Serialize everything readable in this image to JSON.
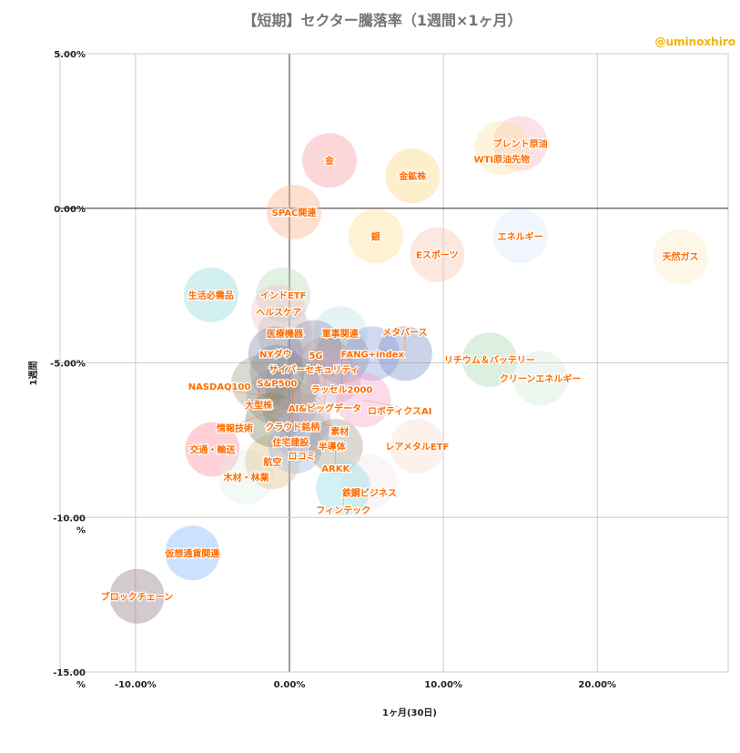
{
  "chart_data": {
    "type": "scatter",
    "title": "【短期】セクター騰落率（1週間×1ヶ月）",
    "watermark": "@uminoxhiro",
    "xlabel": "1ヶ月(30日)",
    "ylabel": "1週間",
    "xlim": [
      -14.9,
      28.5
    ],
    "ylim": [
      -15,
      5
    ],
    "x_ticks": [
      "-10.00%",
      "0.00%",
      "10.00%",
      "20.00%"
    ],
    "x_tick_values": [
      -10,
      0,
      10,
      20
    ],
    "y_ticks": [
      "5.00%",
      "0.00%",
      "-5.00%",
      "-10.00\n%",
      "-15.00\n%"
    ],
    "y_tick_values": [
      5,
      0,
      -5,
      -10,
      -15
    ],
    "grid": true,
    "label_color": "#ff6d00",
    "points": [
      {
        "label": "ブロックチェーン",
        "x": -9.9,
        "y": -12.55,
        "color": "#8e7b88"
      },
      {
        "label": "仮想通貨関連",
        "x": -6.3,
        "y": -11.15,
        "color": "#7fb1ff"
      },
      {
        "label": "交通・輸送",
        "x": -5.0,
        "y": -7.8,
        "color": "#ff8a9a"
      },
      {
        "label": "生活必需品",
        "x": -5.1,
        "y": -2.8,
        "color": "#8fd6dc"
      },
      {
        "label": "木材・林業",
        "x": -2.8,
        "y": -8.7,
        "color": "#e2efe4"
      },
      {
        "label": "航空",
        "x": -1.1,
        "y": -8.2,
        "color": "#e0c08c"
      },
      {
        "label": "ブレント原油",
        "x": 15.0,
        "y": 2.1,
        "color": "#f7b6bf"
      },
      {
        "label": "WTI原油先物",
        "x": 13.8,
        "y": 1.95,
        "color": "#fde3a5"
      },
      {
        "label": "金",
        "x": 2.6,
        "y": 1.55,
        "color": "#f59aa0"
      },
      {
        "label": "金鉱株",
        "x": 8.0,
        "y": 1.05,
        "color": "#fbd77a"
      },
      {
        "label": "SPAC関連",
        "x": 0.3,
        "y": -0.12,
        "color": "#f9b18a"
      },
      {
        "label": "銀",
        "x": 5.6,
        "y": -0.9,
        "color": "#fcde8f"
      },
      {
        "label": "エネルギー",
        "x": 15.0,
        "y": -0.9,
        "color": "#dbe6fb"
      },
      {
        "label": "Eスポーツ",
        "x": 9.6,
        "y": -1.5,
        "color": "#fbc6b0"
      },
      {
        "label": "天然ガス",
        "x": 25.4,
        "y": -1.56,
        "color": "#fde9c4"
      },
      {
        "label": "インドETF",
        "x": -0.4,
        "y": -2.8,
        "color": "#b9dcb7"
      },
      {
        "label": "ヘルスケア",
        "x": -0.7,
        "y": -3.35,
        "color": "#f5c0c9"
      },
      {
        "label": "医療機器",
        "x": -0.3,
        "y": -4.05,
        "color": "#c9c9c9"
      },
      {
        "label": "軍事関連",
        "x": 3.3,
        "y": -4.05,
        "color": "#bfe0e6"
      },
      {
        "label": "NYダウ",
        "x": -0.9,
        "y": -4.7,
        "color": "#8a8fa6"
      },
      {
        "label": "サイバーセキュリティ",
        "x": 1.6,
        "y": -4.5,
        "color": "#9b8cae"
      },
      {
        "label": "ラッセル2000",
        "x": 3.4,
        "y": -4.8,
        "color": "#a09090"
      },
      {
        "label": "FANG+index",
        "x": 5.4,
        "y": -4.7,
        "color": "#8f9fe0"
      },
      {
        "label": "メタバース",
        "x": 7.5,
        "y": -4.7,
        "color": "#7e90c6"
      },
      {
        "label": "リチウム＆バッテリー",
        "x": 13.0,
        "y": -4.9,
        "color": "#a9d6b0"
      },
      {
        "label": "クリーンエネルギー",
        "x": 16.3,
        "y": -5.5,
        "color": "#d3ecd8"
      },
      {
        "label": "AI&ビッグデータ",
        "x": 2.3,
        "y": -5.05,
        "color": "#b0a3a0"
      },
      {
        "label": "S&P500",
        "x": -0.8,
        "y": -5.3,
        "color": "#7d8aa0"
      },
      {
        "label": "5G",
        "x": 2.9,
        "y": -5.45,
        "color": "#c3a8c9"
      },
      {
        "label": "大型株",
        "x": -2.0,
        "y": -5.65,
        "color": "#a7a38a"
      },
      {
        "label": "クラウド銘柄",
        "x": 0.2,
        "y": -5.65,
        "color": "#9e9590"
      },
      {
        "label": "NASDAQ100",
        "x": -1.0,
        "y": -6.1,
        "color": "#9a9aa6"
      },
      {
        "label": "ロボティクスAI",
        "x": 4.8,
        "y": -6.2,
        "color": "#f0a6c8"
      },
      {
        "label": "情報技術",
        "x": 0.0,
        "y": -6.4,
        "color": "#9c8f7a"
      },
      {
        "label": "住宅建設",
        "x": -1.1,
        "y": -6.85,
        "color": "#7f8a6a"
      },
      {
        "label": "素材",
        "x": 0.9,
        "y": -6.85,
        "color": "#b8a3b8"
      },
      {
        "label": "ロコミ",
        "x": 0.8,
        "y": -7.3,
        "color": "#b7b3c7"
      },
      {
        "label": "半導体",
        "x": 0.4,
        "y": -7.7,
        "color": "#a2b7d6"
      },
      {
        "label": "ARKK",
        "x": 3.0,
        "y": -7.7,
        "color": "#a89a8d"
      },
      {
        "label": "レアメタルETF",
        "x": 8.3,
        "y": -7.7,
        "color": "#fbdccc"
      },
      {
        "label": "鉄鋼ビジネス",
        "x": 5.2,
        "y": -8.85,
        "color": "#f3e6e8"
      },
      {
        "label": "フィンテック",
        "x": 3.5,
        "y": -9.05,
        "color": "#8fdbe4"
      }
    ]
  }
}
